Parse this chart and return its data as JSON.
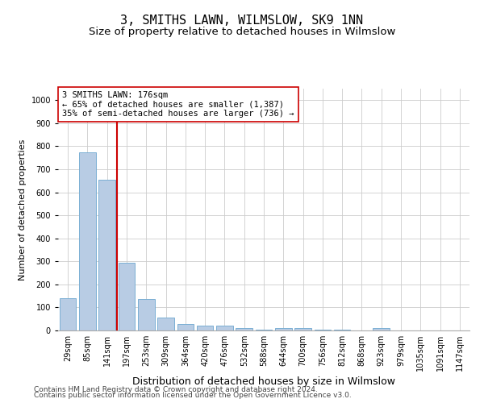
{
  "title": "3, SMITHS LAWN, WILMSLOW, SK9 1NN",
  "subtitle": "Size of property relative to detached houses in Wilmslow",
  "xlabel": "Distribution of detached houses by size in Wilmslow",
  "ylabel": "Number of detached properties",
  "categories": [
    "29sqm",
    "85sqm",
    "141sqm",
    "197sqm",
    "253sqm",
    "309sqm",
    "364sqm",
    "420sqm",
    "476sqm",
    "532sqm",
    "588sqm",
    "644sqm",
    "700sqm",
    "756sqm",
    "812sqm",
    "868sqm",
    "923sqm",
    "979sqm",
    "1035sqm",
    "1091sqm",
    "1147sqm"
  ],
  "values": [
    140,
    775,
    655,
    293,
    135,
    55,
    28,
    20,
    20,
    10,
    5,
    10,
    10,
    5,
    5,
    0,
    10,
    0,
    0,
    0,
    0
  ],
  "bar_color": "#b8cce4",
  "bar_edge_color": "#7aafd4",
  "vline_color": "#cc0000",
  "vline_x": 2.5,
  "annotation_text": "3 SMITHS LAWN: 176sqm\n← 65% of detached houses are smaller (1,387)\n35% of semi-detached houses are larger (736) →",
  "annotation_box_color": "#ffffff",
  "annotation_box_edge_color": "#cc0000",
  "ylim": [
    0,
    1050
  ],
  "yticks": [
    0,
    100,
    200,
    300,
    400,
    500,
    600,
    700,
    800,
    900,
    1000
  ],
  "background_color": "#ffffff",
  "grid_color": "#cccccc",
  "footer_line1": "Contains HM Land Registry data © Crown copyright and database right 2024.",
  "footer_line2": "Contains public sector information licensed under the Open Government Licence v3.0.",
  "title_fontsize": 11,
  "subtitle_fontsize": 9.5,
  "xlabel_fontsize": 9,
  "ylabel_fontsize": 8,
  "tick_fontsize": 7,
  "annotation_fontsize": 7.5,
  "footer_fontsize": 6.5
}
